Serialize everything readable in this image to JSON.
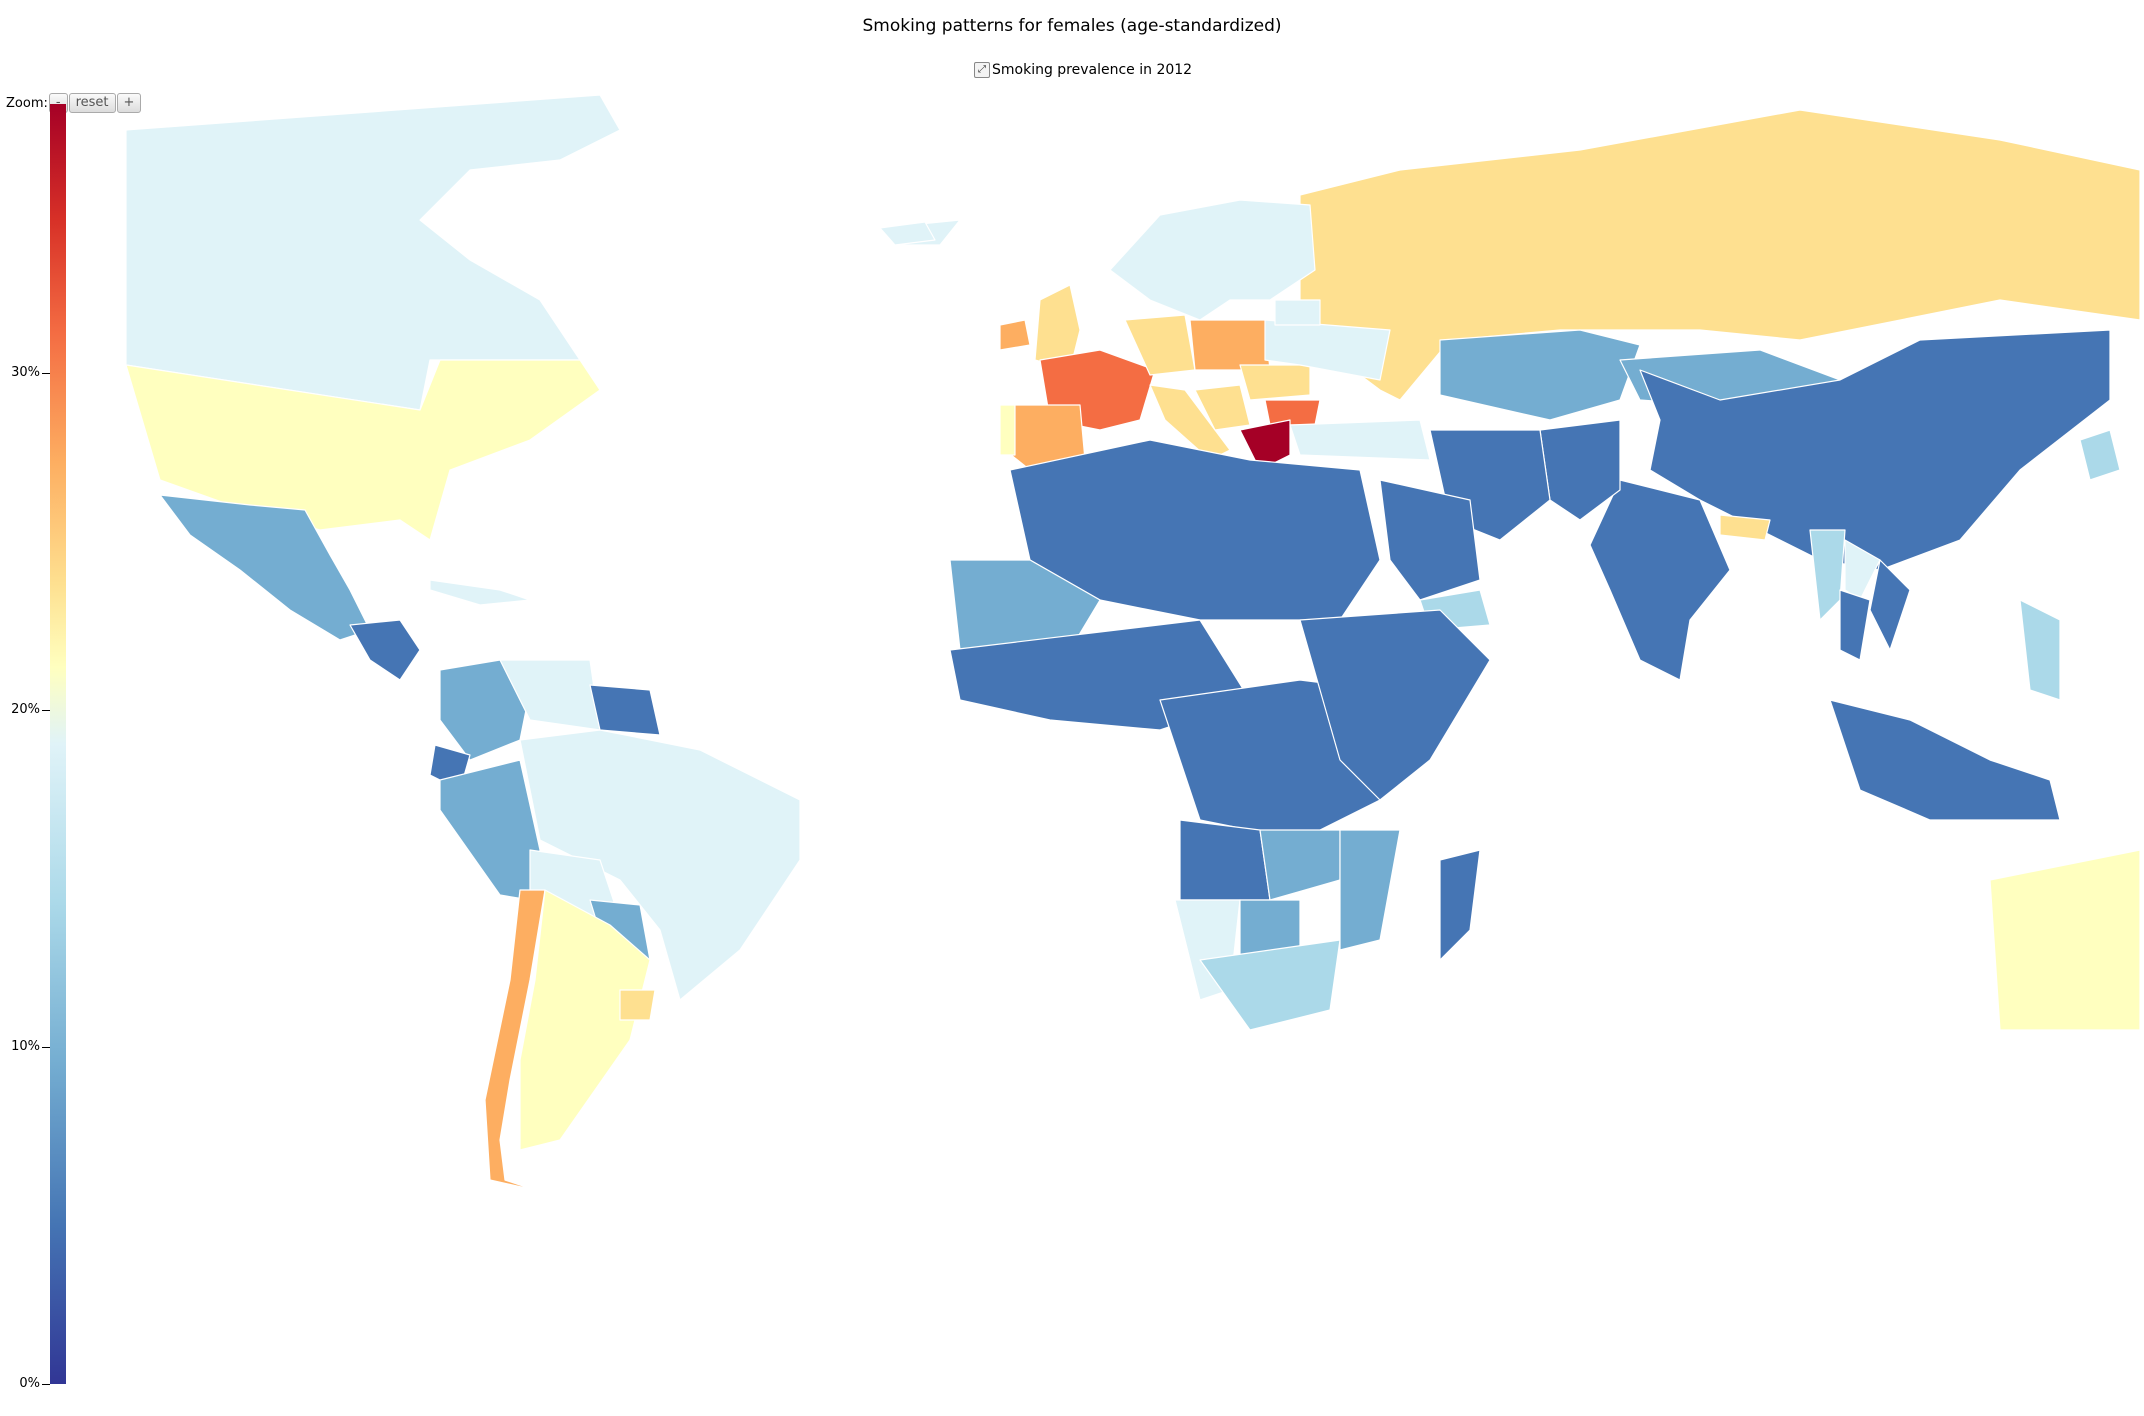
{
  "title": "Smoking patterns for females (age-standardized)",
  "legend": {
    "label": "Smoking prevalence in 2012",
    "toggle_icon": "expand-arrows-icon"
  },
  "zoom": {
    "label": "Zoom:",
    "minus": "-",
    "reset": "reset",
    "plus": "+"
  },
  "colorbar": {
    "min": 0,
    "max": 38,
    "ticks": [
      {
        "label": "0%"
      },
      {
        "label": "10%"
      },
      {
        "label": "20%"
      },
      {
        "label": "30%"
      }
    ],
    "colors": [
      "#313695",
      "#4575b4",
      "#74add1",
      "#abd9e9",
      "#e0f3f8",
      "#ffffbf",
      "#fee090",
      "#fdae61",
      "#f46d43",
      "#d73027",
      "#a50026"
    ]
  },
  "chart_data": {
    "type": "choropleth",
    "title": "Smoking patterns for females (age-standardized)",
    "series_name": "Smoking prevalence in 2012",
    "value_range": [
      0,
      38
    ],
    "regions": [
      {
        "name": "Canada",
        "value": 16
      },
      {
        "name": "United States",
        "value": 18
      },
      {
        "name": "Greenland",
        "value": 16
      },
      {
        "name": "Iceland",
        "value": 16
      },
      {
        "name": "Mexico",
        "value": 8
      },
      {
        "name": "Central America",
        "value": 3
      },
      {
        "name": "Cuba",
        "value": 16
      },
      {
        "name": "Colombia",
        "value": 9
      },
      {
        "name": "Venezuela",
        "value": 15
      },
      {
        "name": "Guyana",
        "value": 5
      },
      {
        "name": "Ecuador",
        "value": 4
      },
      {
        "name": "Peru",
        "value": 7
      },
      {
        "name": "Brazil",
        "value": 14
      },
      {
        "name": "Bolivia",
        "value": 14
      },
      {
        "name": "Paraguay",
        "value": 6
      },
      {
        "name": "Chile",
        "value": 28
      },
      {
        "name": "Argentina",
        "value": 18
      },
      {
        "name": "Uruguay",
        "value": 23
      },
      {
        "name": "Russia",
        "value": 21
      },
      {
        "name": "Scandinavia",
        "value": 17
      },
      {
        "name": "United Kingdom",
        "value": 22
      },
      {
        "name": "Ireland",
        "value": 25
      },
      {
        "name": "France",
        "value": 29
      },
      {
        "name": "Spain",
        "value": 25
      },
      {
        "name": "Portugal",
        "value": 18
      },
      {
        "name": "Germany",
        "value": 24
      },
      {
        "name": "Poland",
        "value": 25
      },
      {
        "name": "Italy",
        "value": 23
      },
      {
        "name": "Balkans",
        "value": 24
      },
      {
        "name": "Romania",
        "value": 22
      },
      {
        "name": "Bulgaria",
        "value": 31
      },
      {
        "name": "Greece",
        "value": 38
      },
      {
        "name": "Ukraine",
        "value": 15
      },
      {
        "name": "Belarus",
        "value": 15
      },
      {
        "name": "Turkey",
        "value": 16
      },
      {
        "name": "Kazakhstan",
        "value": 9
      },
      {
        "name": "Mongolia",
        "value": 9
      },
      {
        "name": "China",
        "value": 3
      },
      {
        "name": "Japan",
        "value": 10
      },
      {
        "name": "India",
        "value": 5
      },
      {
        "name": "Pakistan",
        "value": 5
      },
      {
        "name": "Iran",
        "value": 3
      },
      {
        "name": "Saudi Arabia",
        "value": 4
      },
      {
        "name": "Yemen",
        "value": 10
      },
      {
        "name": "Nepal",
        "value": 21
      },
      {
        "name": "Myanmar",
        "value": 11
      },
      {
        "name": "Laos",
        "value": 14
      },
      {
        "name": "Thailand",
        "value": 3
      },
      {
        "name": "Vietnam",
        "value": 3
      },
      {
        "name": "Indonesia",
        "value": 5
      },
      {
        "name": "Philippines",
        "value": 12
      },
      {
        "name": "Australia",
        "value": 18
      },
      {
        "name": "North Africa",
        "value": 2
      },
      {
        "name": "Western Sahara region",
        "value": 7
      },
      {
        "name": "West Africa",
        "value": 3
      },
      {
        "name": "Central Africa",
        "value": 3
      },
      {
        "name": "East Africa",
        "value": 3
      },
      {
        "name": "Angola",
        "value": 4
      },
      {
        "name": "Zambia",
        "value": 6
      },
      {
        "name": "Namibia",
        "value": 14
      },
      {
        "name": "Botswana",
        "value": 8
      },
      {
        "name": "South Africa",
        "value": 12
      },
      {
        "name": "Mozambique",
        "value": 7
      },
      {
        "name": "Madagascar",
        "value": 3
      }
    ]
  }
}
